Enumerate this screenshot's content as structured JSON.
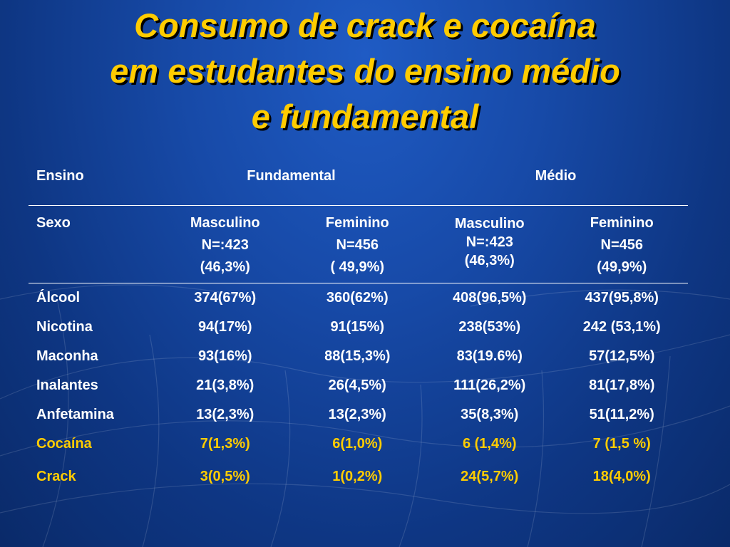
{
  "title": {
    "lines": [
      "Consumo de crack e cocaína",
      "em estudantes do ensino médio",
      "e fundamental"
    ]
  },
  "table": {
    "header": {
      "label": "Ensino",
      "fundamental": "Fundamental",
      "medio": "Médio"
    },
    "sexo": {
      "label": "Sexo",
      "groups": [
        {
          "sex": "Masculino",
          "n": "N=:423",
          "pct": "(46,3%)"
        },
        {
          "sex": "Feminino",
          "n": "N=456",
          "pct": "( 49,9%)"
        },
        {
          "sex": "Masculino",
          "n": "N=:423",
          "pct": "(46,3%)"
        },
        {
          "sex": "Feminino",
          "n": "N=456",
          "pct": "(49,9%)"
        }
      ]
    },
    "rows": [
      {
        "substance": "Álcool",
        "values": [
          "374(67%)",
          "360(62%)",
          "408(96,5%)",
          "437(95,8%)"
        ]
      },
      {
        "substance": "Nicotina",
        "values": [
          "94(17%)",
          "91(15%)",
          "238(53%)",
          "242 (53,1%)"
        ]
      },
      {
        "substance": "Maconha",
        "values": [
          "93(16%)",
          "88(15,3%)",
          "83(19.6%)",
          "57(12,5%)"
        ]
      },
      {
        "substance": "Inalantes",
        "values": [
          "21(3,8%)",
          "26(4,5%)",
          "111(26,2%)",
          "81(17,8%)"
        ]
      },
      {
        "substance": "Anfetamina",
        "values": [
          "13(2,3%)",
          "13(2,3%)",
          "35(8,3%)",
          "51(11,2%)"
        ]
      },
      {
        "substance": "Cocaína",
        "values": [
          "7(1,3%)",
          "6(1,0%)",
          "6 (1,4%)",
          "7  (1,5 %)"
        ]
      },
      {
        "substance": "Crack",
        "values": [
          "3(0,5%)",
          "1(0,2%)",
          "24(5,7%)",
          "18(4,0%)"
        ]
      }
    ]
  },
  "colors": {
    "background": "#174aa8",
    "title": "#ffcc00",
    "highlight": "#ffcc00",
    "text": "#ffffff"
  }
}
